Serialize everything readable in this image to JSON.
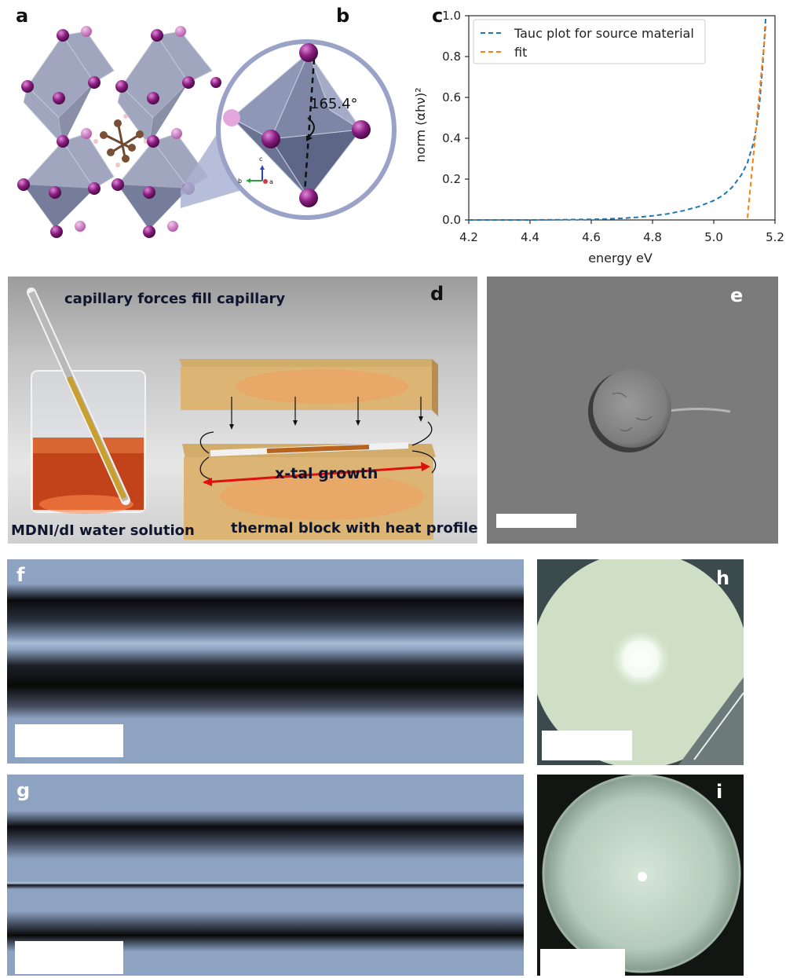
{
  "panels": {
    "a": {
      "label": "a"
    },
    "b": {
      "label": "b",
      "angle": "165.4°",
      "axes": {
        "c": "c",
        "b": "b",
        "a": "a"
      }
    },
    "c": {
      "label": "c"
    },
    "d": {
      "label": "d",
      "texts": {
        "top": "capillary forces fill capillary",
        "growth": "x-tal growth",
        "solution": "MDNI/dI water solution",
        "block": "thermal block with heat profile"
      }
    },
    "e": {
      "label": "e"
    },
    "f": {
      "label": "f"
    },
    "g": {
      "label": "g"
    },
    "h": {
      "label": "h"
    },
    "i": {
      "label": "i"
    }
  },
  "chart_data": {
    "type": "line",
    "xlabel": "energy eV",
    "ylabel": "norm (αhν)²",
    "xlim": [
      4.2,
      5.2
    ],
    "ylim": [
      0.0,
      1.0
    ],
    "xticks": [
      "4.2",
      "4.4",
      "4.6",
      "4.8",
      "5.0",
      "5.2"
    ],
    "yticks": [
      "0.0",
      "0.2",
      "0.4",
      "0.6",
      "0.8",
      "1.0"
    ],
    "legend_position": "top-left",
    "grid": false,
    "series": [
      {
        "name": "Tauc plot for source material",
        "color": "#1f77b4",
        "style": "dashed",
        "x": [
          4.2,
          4.3,
          4.4,
          4.5,
          4.6,
          4.65,
          4.7,
          4.75,
          4.8,
          4.85,
          4.9,
          4.95,
          5.0,
          5.03,
          5.06,
          5.09,
          5.11,
          5.13,
          5.14,
          5.15,
          5.16,
          5.17
        ],
        "y": [
          0.0,
          0.0,
          0.0,
          0.001,
          0.003,
          0.005,
          0.008,
          0.013,
          0.02,
          0.03,
          0.045,
          0.065,
          0.095,
          0.12,
          0.16,
          0.22,
          0.28,
          0.38,
          0.46,
          0.58,
          0.76,
          1.0
        ]
      },
      {
        "name": "fit",
        "color": "#ff7f0e",
        "style": "dashed",
        "x": [
          5.11,
          5.17
        ],
        "y": [
          0.01,
          0.95
        ]
      }
    ]
  }
}
